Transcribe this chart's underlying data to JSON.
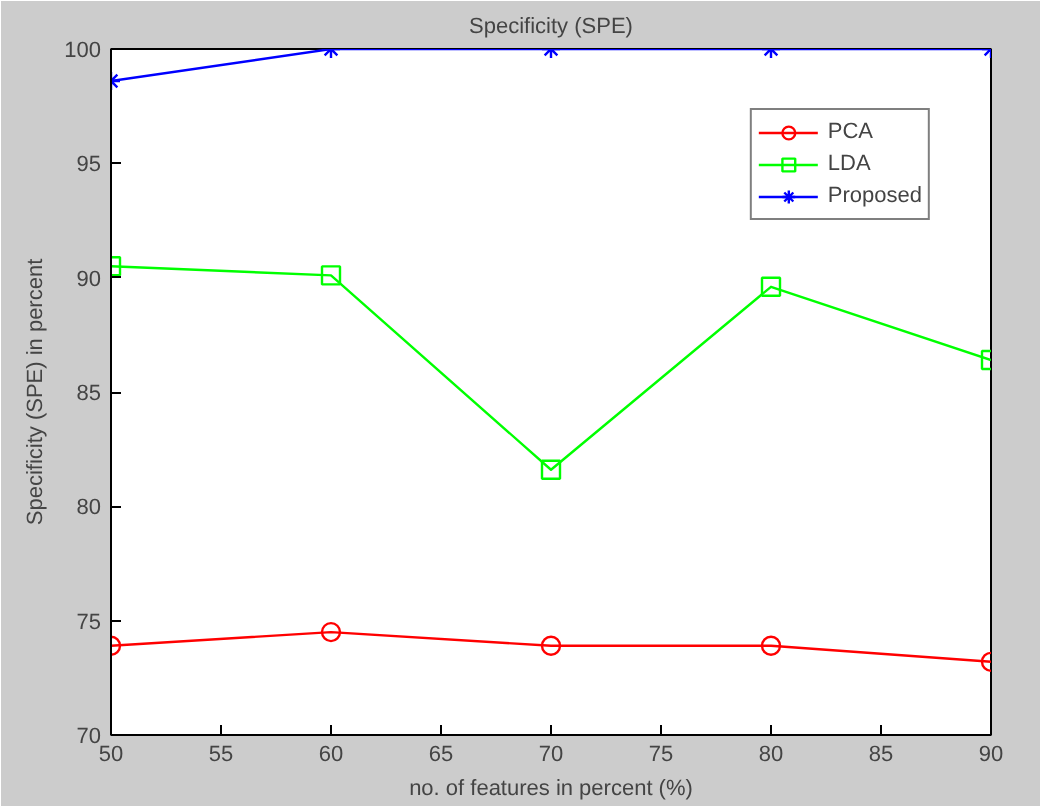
{
  "chart_data": {
    "type": "line",
    "title": "Specificity (SPE)",
    "xlabel": "no. of features in percent (%)",
    "ylabel": "Specificity (SPE) in percent",
    "x": [
      50,
      60,
      70,
      80,
      90
    ],
    "series": [
      {
        "name": "PCA",
        "color": "#ff0000",
        "marker": "circle",
        "values": [
          73.9,
          74.5,
          73.9,
          73.9,
          73.2
        ]
      },
      {
        "name": "LDA",
        "color": "#00ff00",
        "marker": "square",
        "values": [
          90.5,
          90.1,
          81.6,
          89.6,
          86.4
        ]
      },
      {
        "name": "Proposed",
        "color": "#0000ff",
        "marker": "cross",
        "values": [
          98.6,
          100,
          100,
          100,
          100
        ]
      }
    ],
    "xlim": [
      50,
      90
    ],
    "ylim": [
      70,
      100
    ],
    "xticks": [
      50,
      55,
      60,
      65,
      70,
      75,
      80,
      85,
      90
    ],
    "yticks": [
      70,
      75,
      80,
      85,
      90,
      95,
      100
    ],
    "grid": false,
    "legend": "top right",
    "line_style": "solid"
  }
}
